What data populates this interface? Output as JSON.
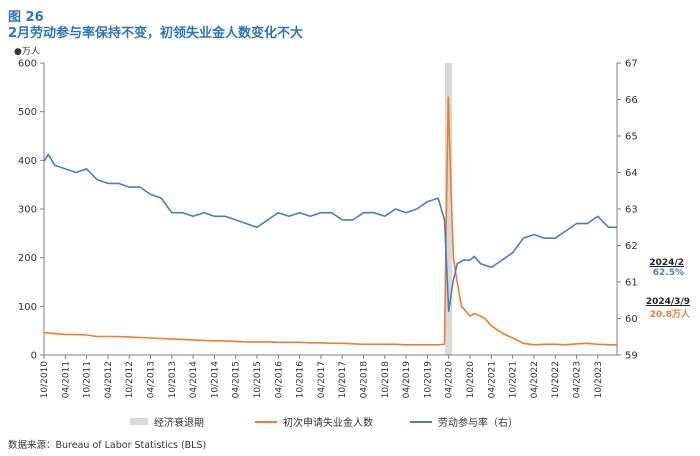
{
  "header": {
    "figure_label": "图 26",
    "title": "2月劳动参与率保持不变，初领失业金人数变化不大"
  },
  "axis_unit_left": "万人",
  "source": "数据来源：Bureau of Labor Statistics (BLS)",
  "annotations": {
    "participation_date": "2024/2",
    "participation_value": "62.5%",
    "claims_date": "2024/3/9",
    "claims_value": "20.8万人"
  },
  "colors": {
    "claims": "#ED7D31",
    "participation": "#4A7EBB",
    "recession": "#d9d9d9",
    "axis": "#7f7f7f"
  },
  "chart_data": {
    "type": "line",
    "title": "2月劳动参与率保持不变，初领失业金人数变化不大",
    "x_tick_labels": [
      "10/2010",
      "04/2011",
      "10/2011",
      "04/2012",
      "10/2012",
      "04/2013",
      "10/2013",
      "04/2014",
      "10/2014",
      "04/2015",
      "10/2015",
      "04/2016",
      "10/2016",
      "04/2017",
      "10/2017",
      "04/2018",
      "10/2018",
      "04/2019",
      "10/2019",
      "04/2020",
      "10/2020",
      "04/2021",
      "10/2021",
      "04/2022",
      "10/2022",
      "04/2023",
      "10/2023"
    ],
    "x_range": [
      2010.75,
      2024.2
    ],
    "y_left": {
      "range": [
        0,
        600
      ],
      "ticks": [
        0,
        100,
        200,
        300,
        400,
        500,
        600
      ],
      "unit": "万人"
    },
    "y_right": {
      "range": [
        59,
        67
      ],
      "ticks": [
        59,
        60,
        61,
        62,
        63,
        64,
        65,
        66,
        67
      ]
    },
    "recession_shading": {
      "name": "经济衰退期",
      "start": 2020.16,
      "end": 2020.33
    },
    "legend_position": "bottom",
    "series": [
      {
        "name": "初次申请失业金人数",
        "axis": "left",
        "points": [
          [
            2010.75,
            46
          ],
          [
            2011.0,
            44
          ],
          [
            2011.25,
            42
          ],
          [
            2011.5,
            42
          ],
          [
            2011.75,
            41
          ],
          [
            2012.0,
            38
          ],
          [
            2012.25,
            38
          ],
          [
            2012.5,
            38
          ],
          [
            2012.75,
            37
          ],
          [
            2013.0,
            36
          ],
          [
            2013.25,
            35
          ],
          [
            2013.5,
            34
          ],
          [
            2013.75,
            33
          ],
          [
            2014.0,
            32
          ],
          [
            2014.25,
            31
          ],
          [
            2014.5,
            30
          ],
          [
            2014.75,
            29
          ],
          [
            2015.0,
            29
          ],
          [
            2015.25,
            28
          ],
          [
            2015.5,
            27
          ],
          [
            2015.75,
            27
          ],
          [
            2016.0,
            27
          ],
          [
            2016.25,
            26
          ],
          [
            2016.5,
            26
          ],
          [
            2016.75,
            26
          ],
          [
            2017.0,
            25
          ],
          [
            2017.25,
            25
          ],
          [
            2017.5,
            24
          ],
          [
            2017.75,
            24
          ],
          [
            2018.0,
            23
          ],
          [
            2018.25,
            22
          ],
          [
            2018.5,
            22
          ],
          [
            2018.75,
            22
          ],
          [
            2019.0,
            22
          ],
          [
            2019.25,
            21
          ],
          [
            2019.5,
            21
          ],
          [
            2019.75,
            21
          ],
          [
            2020.0,
            21
          ],
          [
            2020.15,
            22
          ],
          [
            2020.2,
            328
          ],
          [
            2020.24,
            530
          ],
          [
            2020.3,
            350
          ],
          [
            2020.36,
            200
          ],
          [
            2020.45,
            150
          ],
          [
            2020.55,
            100
          ],
          [
            2020.65,
            90
          ],
          [
            2020.75,
            80
          ],
          [
            2020.85,
            85
          ],
          [
            2021.0,
            80
          ],
          [
            2021.1,
            75
          ],
          [
            2021.25,
            60
          ],
          [
            2021.5,
            45
          ],
          [
            2021.75,
            35
          ],
          [
            2022.0,
            24
          ],
          [
            2022.25,
            21
          ],
          [
            2022.5,
            22
          ],
          [
            2022.75,
            22
          ],
          [
            2023.0,
            21
          ],
          [
            2023.25,
            23
          ],
          [
            2023.5,
            24
          ],
          [
            2023.75,
            22
          ],
          [
            2024.0,
            21
          ],
          [
            2024.2,
            21
          ]
        ]
      },
      {
        "name": "劳动参与率（右）",
        "axis": "right",
        "points": [
          [
            2010.75,
            64.3
          ],
          [
            2010.85,
            64.5
          ],
          [
            2011.0,
            64.2
          ],
          [
            2011.25,
            64.1
          ],
          [
            2011.5,
            64.0
          ],
          [
            2011.75,
            64.1
          ],
          [
            2012.0,
            63.8
          ],
          [
            2012.25,
            63.7
          ],
          [
            2012.5,
            63.7
          ],
          [
            2012.75,
            63.6
          ],
          [
            2013.0,
            63.6
          ],
          [
            2013.25,
            63.4
          ],
          [
            2013.5,
            63.3
          ],
          [
            2013.75,
            62.9
          ],
          [
            2014.0,
            62.9
          ],
          [
            2014.25,
            62.8
          ],
          [
            2014.5,
            62.9
          ],
          [
            2014.75,
            62.8
          ],
          [
            2015.0,
            62.8
          ],
          [
            2015.25,
            62.7
          ],
          [
            2015.5,
            62.6
          ],
          [
            2015.75,
            62.5
          ],
          [
            2016.0,
            62.7
          ],
          [
            2016.25,
            62.9
          ],
          [
            2016.5,
            62.8
          ],
          [
            2016.75,
            62.9
          ],
          [
            2017.0,
            62.8
          ],
          [
            2017.25,
            62.9
          ],
          [
            2017.5,
            62.9
          ],
          [
            2017.75,
            62.7
          ],
          [
            2018.0,
            62.7
          ],
          [
            2018.25,
            62.9
          ],
          [
            2018.5,
            62.9
          ],
          [
            2018.75,
            62.8
          ],
          [
            2019.0,
            63.0
          ],
          [
            2019.25,
            62.9
          ],
          [
            2019.5,
            63.0
          ],
          [
            2019.75,
            63.2
          ],
          [
            2020.0,
            63.3
          ],
          [
            2020.15,
            62.7
          ],
          [
            2020.25,
            60.2
          ],
          [
            2020.35,
            61.0
          ],
          [
            2020.45,
            61.5
          ],
          [
            2020.6,
            61.6
          ],
          [
            2020.75,
            61.6
          ],
          [
            2020.85,
            61.7
          ],
          [
            2021.0,
            61.5
          ],
          [
            2021.25,
            61.4
          ],
          [
            2021.5,
            61.6
          ],
          [
            2021.75,
            61.8
          ],
          [
            2022.0,
            62.2
          ],
          [
            2022.25,
            62.3
          ],
          [
            2022.5,
            62.2
          ],
          [
            2022.75,
            62.2
          ],
          [
            2023.0,
            62.4
          ],
          [
            2023.25,
            62.6
          ],
          [
            2023.5,
            62.6
          ],
          [
            2023.75,
            62.8
          ],
          [
            2024.0,
            62.5
          ],
          [
            2024.2,
            62.5
          ]
        ]
      }
    ]
  }
}
